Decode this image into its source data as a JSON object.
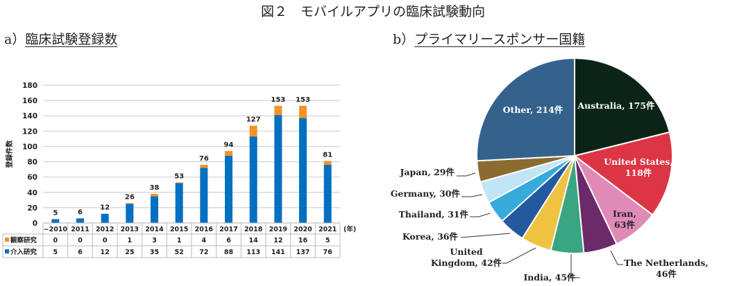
{
  "title": "図２　モバイルアプリの臨床試験動向",
  "panel_a": {
    "prefix": "a）",
    "title": "臨床試験登録数"
  },
  "panel_b": {
    "prefix": "b）",
    "title": "プライマリースポンサー国籍"
  },
  "chart_data": [
    {
      "type": "bar",
      "stacked": true,
      "title": "臨床試験登録数",
      "ylabel": "登録件数",
      "xlabel_unit": "(年)",
      "ylim": [
        0,
        180
      ],
      "yticks": [
        0,
        20,
        40,
        60,
        80,
        100,
        120,
        140,
        160,
        180
      ],
      "grid": true,
      "categories": [
        "~2010",
        "2011",
        "2012",
        "2013",
        "2014",
        "2015",
        "2016",
        "2017",
        "2018",
        "2019",
        "2020",
        "2021"
      ],
      "series": [
        {
          "name": "介入研究",
          "color": "#0070c0",
          "values": [
            5,
            6,
            12,
            25,
            35,
            52,
            72,
            88,
            113,
            141,
            137,
            76
          ]
        },
        {
          "name": "観察研究",
          "color": "#f79226",
          "values": [
            0,
            0,
            0,
            1,
            3,
            1,
            4,
            6,
            14,
            12,
            16,
            5
          ]
        }
      ],
      "totals": [
        5,
        6,
        12,
        26,
        38,
        53,
        76,
        94,
        127,
        153,
        153,
        81
      ],
      "data_table": true
    },
    {
      "type": "pie",
      "title": "プライマリースポンサー国籍",
      "unit": "件",
      "slices": [
        {
          "label": "Australia",
          "value": 175,
          "color": "#0c2418"
        },
        {
          "label": "United States",
          "value": 118,
          "color": "#dc3545"
        },
        {
          "label": "Iran",
          "value": 63,
          "color": "#e08ab8"
        },
        {
          "label": "The Netherlands",
          "value": 46,
          "color": "#6b2a6a"
        },
        {
          "label": "India",
          "value": 45,
          "color": "#3aa582"
        },
        {
          "label": "United Kingdom",
          "value": 42,
          "color": "#f0c242"
        },
        {
          "label": "Korea",
          "value": 36,
          "color": "#22599f"
        },
        {
          "label": "Thailand",
          "value": 31,
          "color": "#37abdc"
        },
        {
          "label": "Germany",
          "value": 30,
          "color": "#c2e5f5"
        },
        {
          "label": "Japan",
          "value": 29,
          "color": "#8b6b2f"
        },
        {
          "label": "Other",
          "value": 214,
          "color": "#34628c"
        }
      ]
    }
  ]
}
